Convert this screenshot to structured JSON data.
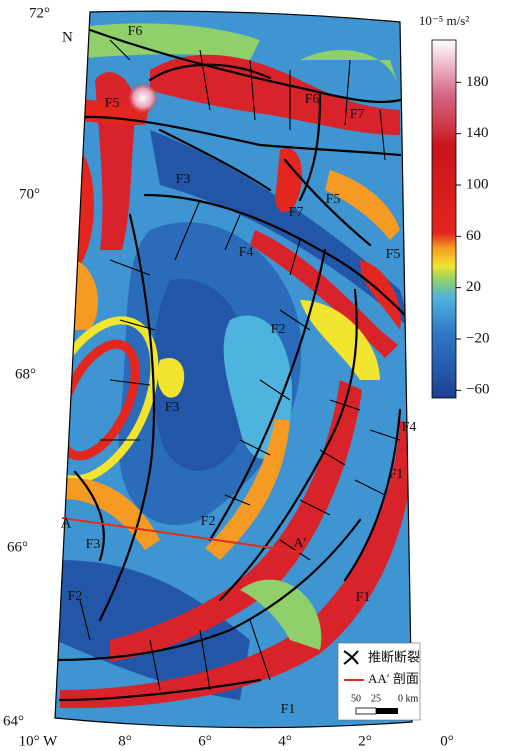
{
  "map": {
    "north": "N",
    "lat_labels": [
      "72°",
      "70°",
      "68°",
      "66°",
      "64°"
    ],
    "lon_labels": [
      "10° W",
      "8°",
      "6°",
      "4°",
      "2°",
      "0°"
    ],
    "fault_labels": [
      "F6",
      "F6",
      "F5",
      "F7",
      "F3",
      "F5",
      "F7",
      "F4",
      "F5",
      "F2",
      "F3",
      "F4",
      "F1",
      "F2",
      "F3",
      "F1",
      "F2",
      "F1"
    ],
    "profile": {
      "start": "A",
      "end": "A′"
    }
  },
  "colorbar": {
    "unit": "10⁻⁵ m/s²",
    "lim": [
      -66,
      213
    ],
    "ticks": [
      180,
      140,
      100,
      60,
      20,
      {
        "value": -20,
        "label": "−20"
      },
      {
        "value": -60,
        "label": "−60"
      }
    ]
  },
  "legend": {
    "fault": "推断断裂",
    "profile": "AA′ 剖面"
  },
  "scale": {
    "labels": [
      "50",
      "25",
      "0 km"
    ]
  }
}
